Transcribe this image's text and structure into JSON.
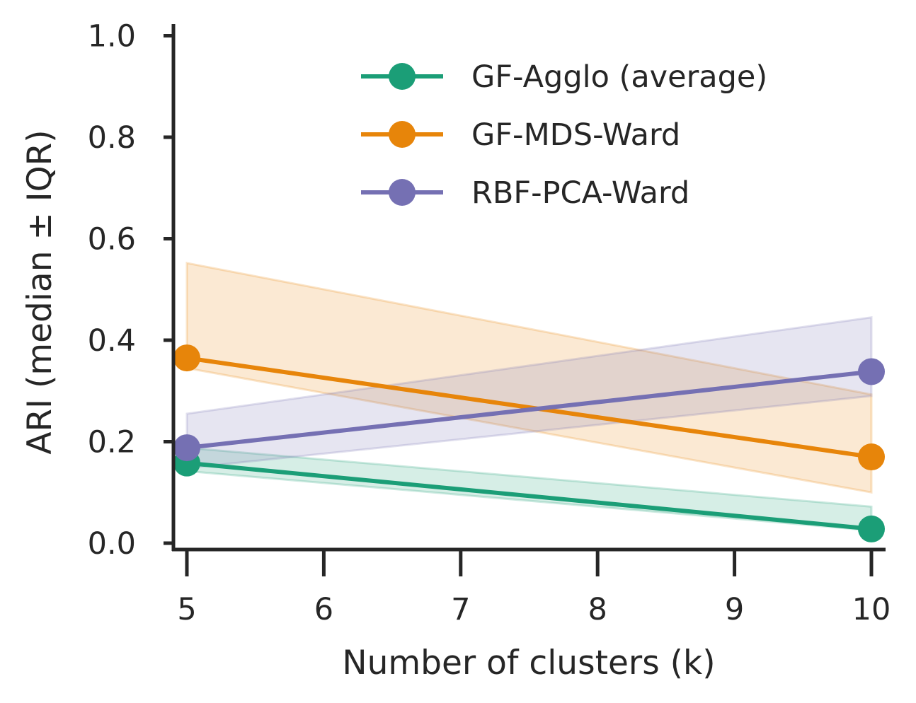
{
  "chart_data": {
    "type": "line",
    "title": "",
    "xlabel": "Number of clusters (k)",
    "ylabel": "ARI (median ± IQR)",
    "xlim": [
      4.9,
      10.1
    ],
    "ylim": [
      -0.01,
      1.02
    ],
    "xticks": [
      5,
      6,
      7,
      8,
      9,
      10
    ],
    "yticks": [
      0.0,
      0.2,
      0.4,
      0.6,
      0.8,
      1.0
    ],
    "xtick_labels": [
      "5",
      "6",
      "7",
      "8",
      "9",
      "10"
    ],
    "ytick_labels": [
      "0.0",
      "0.2",
      "0.4",
      "0.6",
      "0.8",
      "1.0"
    ],
    "grid": false,
    "legend_position": "top-right",
    "series": [
      {
        "name": "GF-Agglo (average)",
        "color": "#1b9e77",
        "x": [
          5,
          10
        ],
        "y": [
          0.158,
          0.028
        ],
        "lower": [
          0.142,
          0.025
        ],
        "upper": [
          0.188,
          0.072
        ]
      },
      {
        "name": "GF-MDS-Ward",
        "color": "#e7850a",
        "x": [
          5,
          10
        ],
        "y": [
          0.365,
          0.17
        ],
        "lower": [
          0.345,
          0.1
        ],
        "upper": [
          0.552,
          0.293
        ]
      },
      {
        "name": "RBF-PCA-Ward",
        "color": "#7570b3",
        "x": [
          5,
          10
        ],
        "y": [
          0.188,
          0.338
        ],
        "lower": [
          0.148,
          0.29
        ],
        "upper": [
          0.255,
          0.445
        ]
      }
    ]
  }
}
